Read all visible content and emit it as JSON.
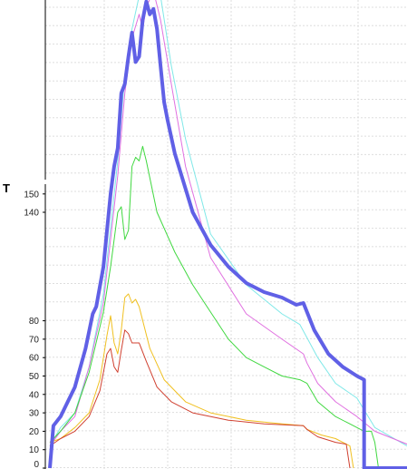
{
  "chart_data": {
    "type": "line",
    "ylabel": "T",
    "y_ticks": [
      0,
      10,
      20,
      30,
      40,
      50,
      60,
      70,
      80,
      140,
      150
    ],
    "ylim": [
      0,
      255
    ],
    "xlim": [
      0,
      100
    ],
    "grid": true,
    "series": [
      {
        "color": "#6060e6",
        "line_width": 4,
        "points": [
          [
            0,
            0
          ],
          [
            0,
            0
          ],
          [
            1,
            23
          ],
          [
            3,
            28
          ],
          [
            7,
            44
          ],
          [
            10,
            65
          ],
          [
            12,
            84
          ],
          [
            13,
            88
          ],
          [
            15,
            110
          ],
          [
            17,
            150
          ],
          [
            18,
            165
          ],
          [
            19,
            175
          ],
          [
            20,
            205
          ],
          [
            21,
            210
          ],
          [
            22,
            225
          ],
          [
            23,
            238
          ],
          [
            24,
            222
          ],
          [
            25,
            225
          ],
          [
            26,
            245
          ],
          [
            27,
            255
          ],
          [
            28,
            248
          ],
          [
            29,
            251
          ],
          [
            30,
            240
          ],
          [
            31,
            220
          ],
          [
            32,
            200
          ],
          [
            33,
            190
          ],
          [
            35,
            172
          ],
          [
            40,
            140
          ],
          [
            45,
            122
          ],
          [
            50,
            110
          ],
          [
            55,
            101
          ],
          [
            60,
            96
          ],
          [
            65,
            93
          ],
          [
            69,
            89
          ],
          [
            71,
            90
          ],
          [
            74,
            75
          ],
          [
            78,
            62
          ],
          [
            82,
            55
          ],
          [
            86,
            50
          ],
          [
            88,
            48
          ],
          [
            88,
            0
          ],
          [
            100,
            0
          ]
        ]
      },
      {
        "color": "#7fe8e8",
        "line_width": 1,
        "points": [
          [
            0,
            12
          ],
          [
            3,
            22
          ],
          [
            7,
            30
          ],
          [
            11,
            55
          ],
          [
            15,
            95
          ],
          [
            19,
            168
          ],
          [
            21,
            215
          ],
          [
            23,
            240
          ],
          [
            25,
            258
          ],
          [
            27,
            265
          ],
          [
            29,
            275
          ],
          [
            31,
            258
          ],
          [
            34,
            220
          ],
          [
            38,
            180
          ],
          [
            45,
            128
          ],
          [
            55,
            100
          ],
          [
            65,
            84
          ],
          [
            70,
            78
          ],
          [
            75,
            60
          ],
          [
            80,
            46
          ],
          [
            86,
            38
          ],
          [
            91,
            22
          ],
          [
            100,
            12
          ]
        ]
      },
      {
        "color": "#e070e0",
        "line_width": 1,
        "points": [
          [
            0,
            12
          ],
          [
            3,
            20
          ],
          [
            7,
            28
          ],
          [
            11,
            55
          ],
          [
            15,
            90
          ],
          [
            19,
            160
          ],
          [
            21,
            205
          ],
          [
            23,
            235
          ],
          [
            25,
            248
          ],
          [
            26,
            240
          ],
          [
            27,
            252
          ],
          [
            29,
            262
          ],
          [
            31,
            245
          ],
          [
            34,
            210
          ],
          [
            38,
            165
          ],
          [
            45,
            115
          ],
          [
            55,
            84
          ],
          [
            65,
            70
          ],
          [
            71,
            62
          ],
          [
            72,
            57
          ],
          [
            75,
            46
          ],
          [
            80,
            36
          ],
          [
            86,
            28
          ],
          [
            91,
            20
          ],
          [
            100,
            13
          ]
        ]
      },
      {
        "color": "#40d840",
        "line_width": 1,
        "points": [
          [
            0,
            14
          ],
          [
            3,
            20
          ],
          [
            7,
            30
          ],
          [
            11,
            52
          ],
          [
            15,
            85
          ],
          [
            17,
            110
          ],
          [
            19,
            140
          ],
          [
            20,
            143
          ],
          [
            21,
            125
          ],
          [
            22,
            130
          ],
          [
            23,
            165
          ],
          [
            24,
            170
          ],
          [
            25,
            168
          ],
          [
            26,
            176
          ],
          [
            27,
            168
          ],
          [
            30,
            140
          ],
          [
            35,
            118
          ],
          [
            40,
            100
          ],
          [
            45,
            85
          ],
          [
            50,
            70
          ],
          [
            55,
            60
          ],
          [
            60,
            55
          ],
          [
            65,
            50
          ],
          [
            70,
            48
          ],
          [
            72,
            46
          ],
          [
            75,
            36
          ],
          [
            80,
            28
          ],
          [
            86,
            22
          ],
          [
            88,
            20
          ],
          [
            90,
            20
          ],
          [
            91,
            14
          ],
          [
            92,
            0
          ]
        ]
      },
      {
        "color": "#f0c020",
        "line_width": 1,
        "points": [
          [
            0,
            14
          ],
          [
            3,
            16
          ],
          [
            7,
            22
          ],
          [
            11,
            30
          ],
          [
            14,
            48
          ],
          [
            16,
            72
          ],
          [
            17,
            83
          ],
          [
            18,
            68
          ],
          [
            19,
            62
          ],
          [
            20,
            75
          ],
          [
            21,
            93
          ],
          [
            22,
            95
          ],
          [
            23,
            90
          ],
          [
            24,
            92
          ],
          [
            25,
            88
          ],
          [
            28,
            65
          ],
          [
            32,
            48
          ],
          [
            38,
            36
          ],
          [
            45,
            30
          ],
          [
            55,
            26
          ],
          [
            65,
            24
          ],
          [
            71,
            23
          ],
          [
            72,
            21
          ],
          [
            76,
            18
          ],
          [
            80,
            16
          ],
          [
            84,
            12
          ],
          [
            85,
            0
          ]
        ]
      },
      {
        "color": "#d04030",
        "line_width": 1,
        "points": [
          [
            0,
            12
          ],
          [
            3,
            16
          ],
          [
            7,
            20
          ],
          [
            11,
            28
          ],
          [
            14,
            42
          ],
          [
            16,
            62
          ],
          [
            17,
            65
          ],
          [
            18,
            55
          ],
          [
            19,
            52
          ],
          [
            20,
            64
          ],
          [
            21,
            75
          ],
          [
            22,
            73
          ],
          [
            23,
            68
          ],
          [
            25,
            68
          ],
          [
            27,
            58
          ],
          [
            30,
            44
          ],
          [
            34,
            36
          ],
          [
            40,
            30
          ],
          [
            50,
            26
          ],
          [
            60,
            24
          ],
          [
            71,
            23
          ],
          [
            72,
            21
          ],
          [
            75,
            17
          ],
          [
            80,
            14
          ],
          [
            83,
            13
          ],
          [
            84,
            0
          ]
        ]
      }
    ]
  }
}
